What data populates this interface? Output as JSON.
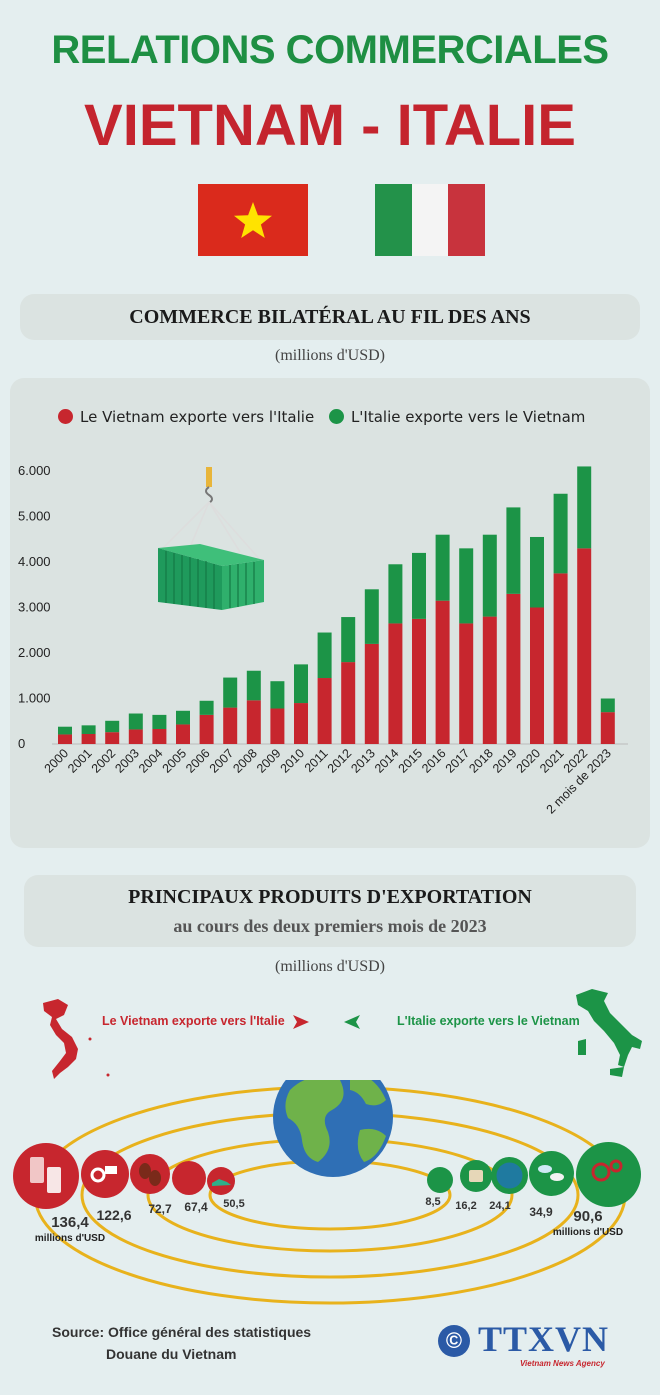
{
  "header": {
    "title_line1": "RELATIONS COMMERCIALES",
    "title_line2": "VIETNAM - ITALIE"
  },
  "colors": {
    "red": "#c7262e",
    "green": "#1c9447",
    "title_green": "#1e8f43",
    "title_red": "#c4242e"
  },
  "section1": {
    "title": "COMMERCE BILATÉRAL AU FIL DES ANS",
    "unit": "(millions d'USD)"
  },
  "chart_data": {
    "type": "bar",
    "stacked": true,
    "legend_position": "top",
    "categories": [
      "2000",
      "2001",
      "2002",
      "2003",
      "2004",
      "2005",
      "2006",
      "2007",
      "2008",
      "2009",
      "2010",
      "2011",
      "2012",
      "2013",
      "2014",
      "2015",
      "2016",
      "2017",
      "2018",
      "2019",
      "2020",
      "2021",
      "2022",
      "2 mois de 2023"
    ],
    "series": [
      {
        "name": "Le Vietnam exporte vers l'Italie",
        "color": "#c7262e",
        "values": [
          210,
          220,
          260,
          320,
          330,
          430,
          640,
          800,
          960,
          780,
          900,
          1450,
          1800,
          2200,
          2650,
          2750,
          3150,
          2650,
          2800,
          3300,
          3000,
          3750,
          4300,
          700
        ]
      },
      {
        "name": "L'Italie exporte vers le Vietnam",
        "color": "#1c9447",
        "values": [
          170,
          190,
          250,
          350,
          310,
          300,
          310,
          660,
          650,
          600,
          850,
          1000,
          990,
          1200,
          1300,
          1450,
          1450,
          1650,
          1800,
          1900,
          1550,
          1750,
          1800,
          300
        ]
      }
    ],
    "y_ticks": [
      "0",
      "1.000",
      "2.000",
      "3.000",
      "4.000",
      "5.000",
      "6.000"
    ],
    "ylim": [
      0,
      6200
    ]
  },
  "section2": {
    "title": "PRINCIPAUX PRODUITS D'EXPORTATION",
    "subtitle": "au cours des deux premiers mois de 2023",
    "unit": "(millions d'USD)",
    "vn_label": "Le Vietnam exporte vers l'Italie",
    "it_label": "L'Italie exporte vers le Vietnam",
    "vn_products": [
      {
        "value": "136,4",
        "icon": "phone-icon"
      },
      {
        "value": "122,6",
        "icon": "machinery-icon"
      },
      {
        "value": "72,7",
        "icon": "coffee-icon"
      },
      {
        "value": "67,4",
        "icon": "product-icon"
      },
      {
        "value": "50,5",
        "icon": "shoe-icon"
      }
    ],
    "it_products": [
      {
        "value": "8,5",
        "icon": "device-icon"
      },
      {
        "value": "16,2",
        "icon": "textile-icon"
      },
      {
        "value": "24,1",
        "icon": "product-icon"
      },
      {
        "value": "34,9",
        "icon": "pharma-icon"
      },
      {
        "value": "90,6",
        "icon": "machinery-icon"
      }
    ],
    "unit_label": "millions d'USD"
  },
  "footer": {
    "source_line1": "Source: Office général des statistiques",
    "source_line2": "Douane du Vietnam",
    "copyright": "©",
    "logo": "TTXVN",
    "agency": "Vietnam News Agency"
  }
}
